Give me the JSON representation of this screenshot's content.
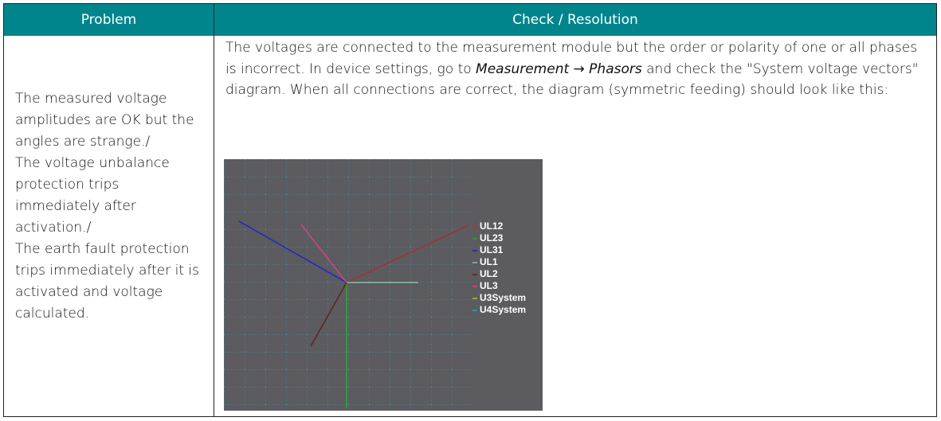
{
  "table": {
    "header": [
      "Problem",
      "Check / Resolution"
    ],
    "problem": [
      "The measured voltage amplitudes are OK but the angles are strange./",
      "The voltage unbalance protection trips immediately after activation./",
      "The earth fault protection trips immediately after it is activated and voltage calculated."
    ],
    "resolution": {
      "before": "The voltages are connected to the measurement module but the order or polarity of one or all phases is incorrect. In device settings, go to ",
      "italic": "Measurement → Phasors",
      "after": " and check the \"System voltage vectors\" diagram. When all connections are correct, the diagram (symmetric feeding) should look like this:"
    },
    "diagram": {
      "legend": [
        "UL12",
        "UL23",
        "UL31",
        "UL1",
        "UL2",
        "UL3",
        "U3System",
        "U4System"
      ]
    }
  }
}
